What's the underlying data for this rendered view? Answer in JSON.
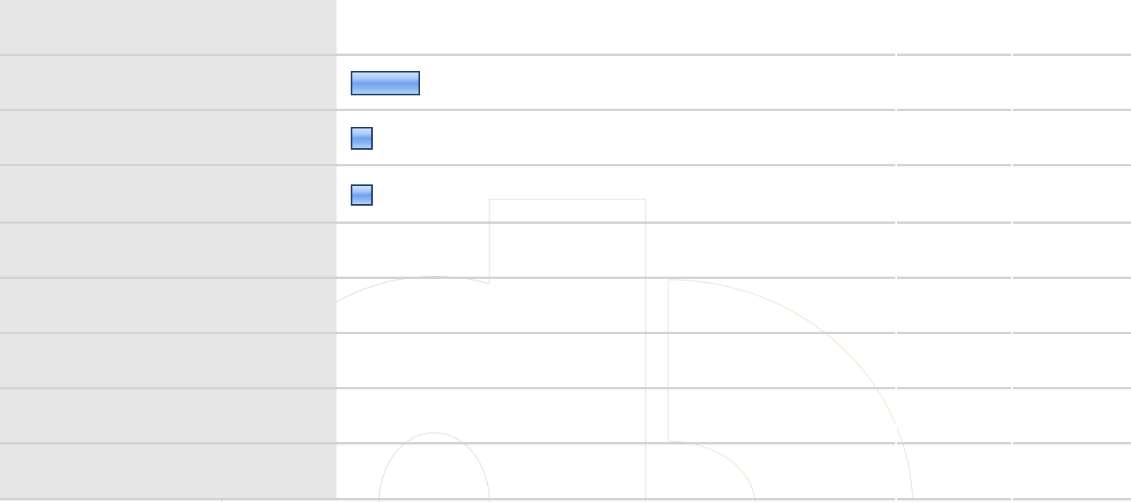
{
  "colors": {
    "label_column": "#e6e6e6",
    "separator": "#d3d3d3",
    "bar_border": "#1b3a66",
    "bar_fill": "#8ab5f2",
    "shape_outline_blue": "#c9cde4",
    "shape_outline_orange": "#f6d2b4"
  },
  "rows": [
    {
      "label": "",
      "value": ""
    },
    {
      "label": "",
      "value": ""
    },
    {
      "label": "",
      "value": ""
    },
    {
      "label": "",
      "value": ""
    },
    {
      "label": "",
      "value": ""
    },
    {
      "label": "",
      "value": ""
    },
    {
      "label": "",
      "value": ""
    },
    {
      "label": "",
      "value": ""
    },
    {
      "label": "",
      "value": ""
    }
  ],
  "bars": [
    {
      "row": 1,
      "kind": "wide-bar"
    },
    {
      "row": 2,
      "kind": "small-square"
    },
    {
      "row": 3,
      "kind": "small-square"
    }
  ]
}
